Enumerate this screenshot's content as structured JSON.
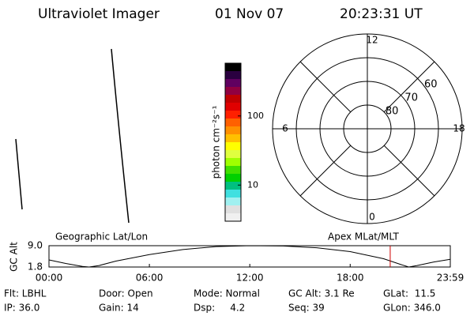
{
  "header": {
    "title": "Ultraviolet Imager",
    "date": "01 Nov 07",
    "time": "20:23:31 UT"
  },
  "colorbar": {
    "label": "photon cm⁻²s⁻¹",
    "log_scale": true,
    "lim": [
      3,
      580
    ],
    "ticks": [
      10,
      100
    ],
    "colors": [
      "#000000",
      "#2a0040",
      "#600060",
      "#900040",
      "#c00000",
      "#e00000",
      "#ff2000",
      "#ff6000",
      "#ff9000",
      "#ffc000",
      "#ffff00",
      "#e0ff40",
      "#a0ff00",
      "#40e000",
      "#00d000",
      "#00c080",
      "#40e0e0",
      "#a0f0f0",
      "#e0e0e0",
      "#f0f0f0"
    ]
  },
  "polar": {
    "rlim": [
      90,
      50
    ],
    "rings": [
      60,
      70,
      80
    ],
    "mlt_ticks": [
      0,
      6,
      12,
      18
    ]
  },
  "chart_data": {
    "type": "line",
    "ylabel": "GC Alt",
    "left_annotation": "Geographic Lat/Lon",
    "right_annotation": "Apex MLat/MLT",
    "x": [
      0,
      1,
      2,
      2.4,
      3,
      4,
      6,
      8,
      10,
      12,
      14,
      16,
      18,
      20,
      21,
      21.5,
      22,
      23,
      23.98
    ],
    "values": [
      4.2,
      3.0,
      2.0,
      1.8,
      2.3,
      3.8,
      6.0,
      7.7,
      8.7,
      9.0,
      8.9,
      8.3,
      7.0,
      4.6,
      2.7,
      1.8,
      2.3,
      3.5,
      4.4
    ],
    "color": "#000000",
    "marker_x": 20.392,
    "marker_color": "#d00000",
    "xlim": [
      0,
      23.983
    ],
    "xticks": [
      {
        "value": 0,
        "label": "00:00"
      },
      {
        "value": 6,
        "label": "06:00"
      },
      {
        "value": 12,
        "label": "12:00"
      },
      {
        "value": 18,
        "label": "18:00"
      },
      {
        "value": 23.983,
        "label": "23:59"
      }
    ],
    "ylim": [
      1.8,
      9.0
    ],
    "yticks": [
      {
        "value": 1.8,
        "label": "1.8"
      },
      {
        "value": 9.0,
        "label": "9.0"
      }
    ]
  },
  "footer": {
    "rows": [
      [
        "Flt: LBHL",
        "Door: Open",
        "Mode: Normal",
        "GC Alt: 3.1 Re",
        "GLat:  11.5"
      ],
      [
        "IP: 36.0",
        "Gain: 14",
        "Dsp:     4.2",
        "Seq: 39",
        "GLon: 346.0"
      ]
    ]
  }
}
